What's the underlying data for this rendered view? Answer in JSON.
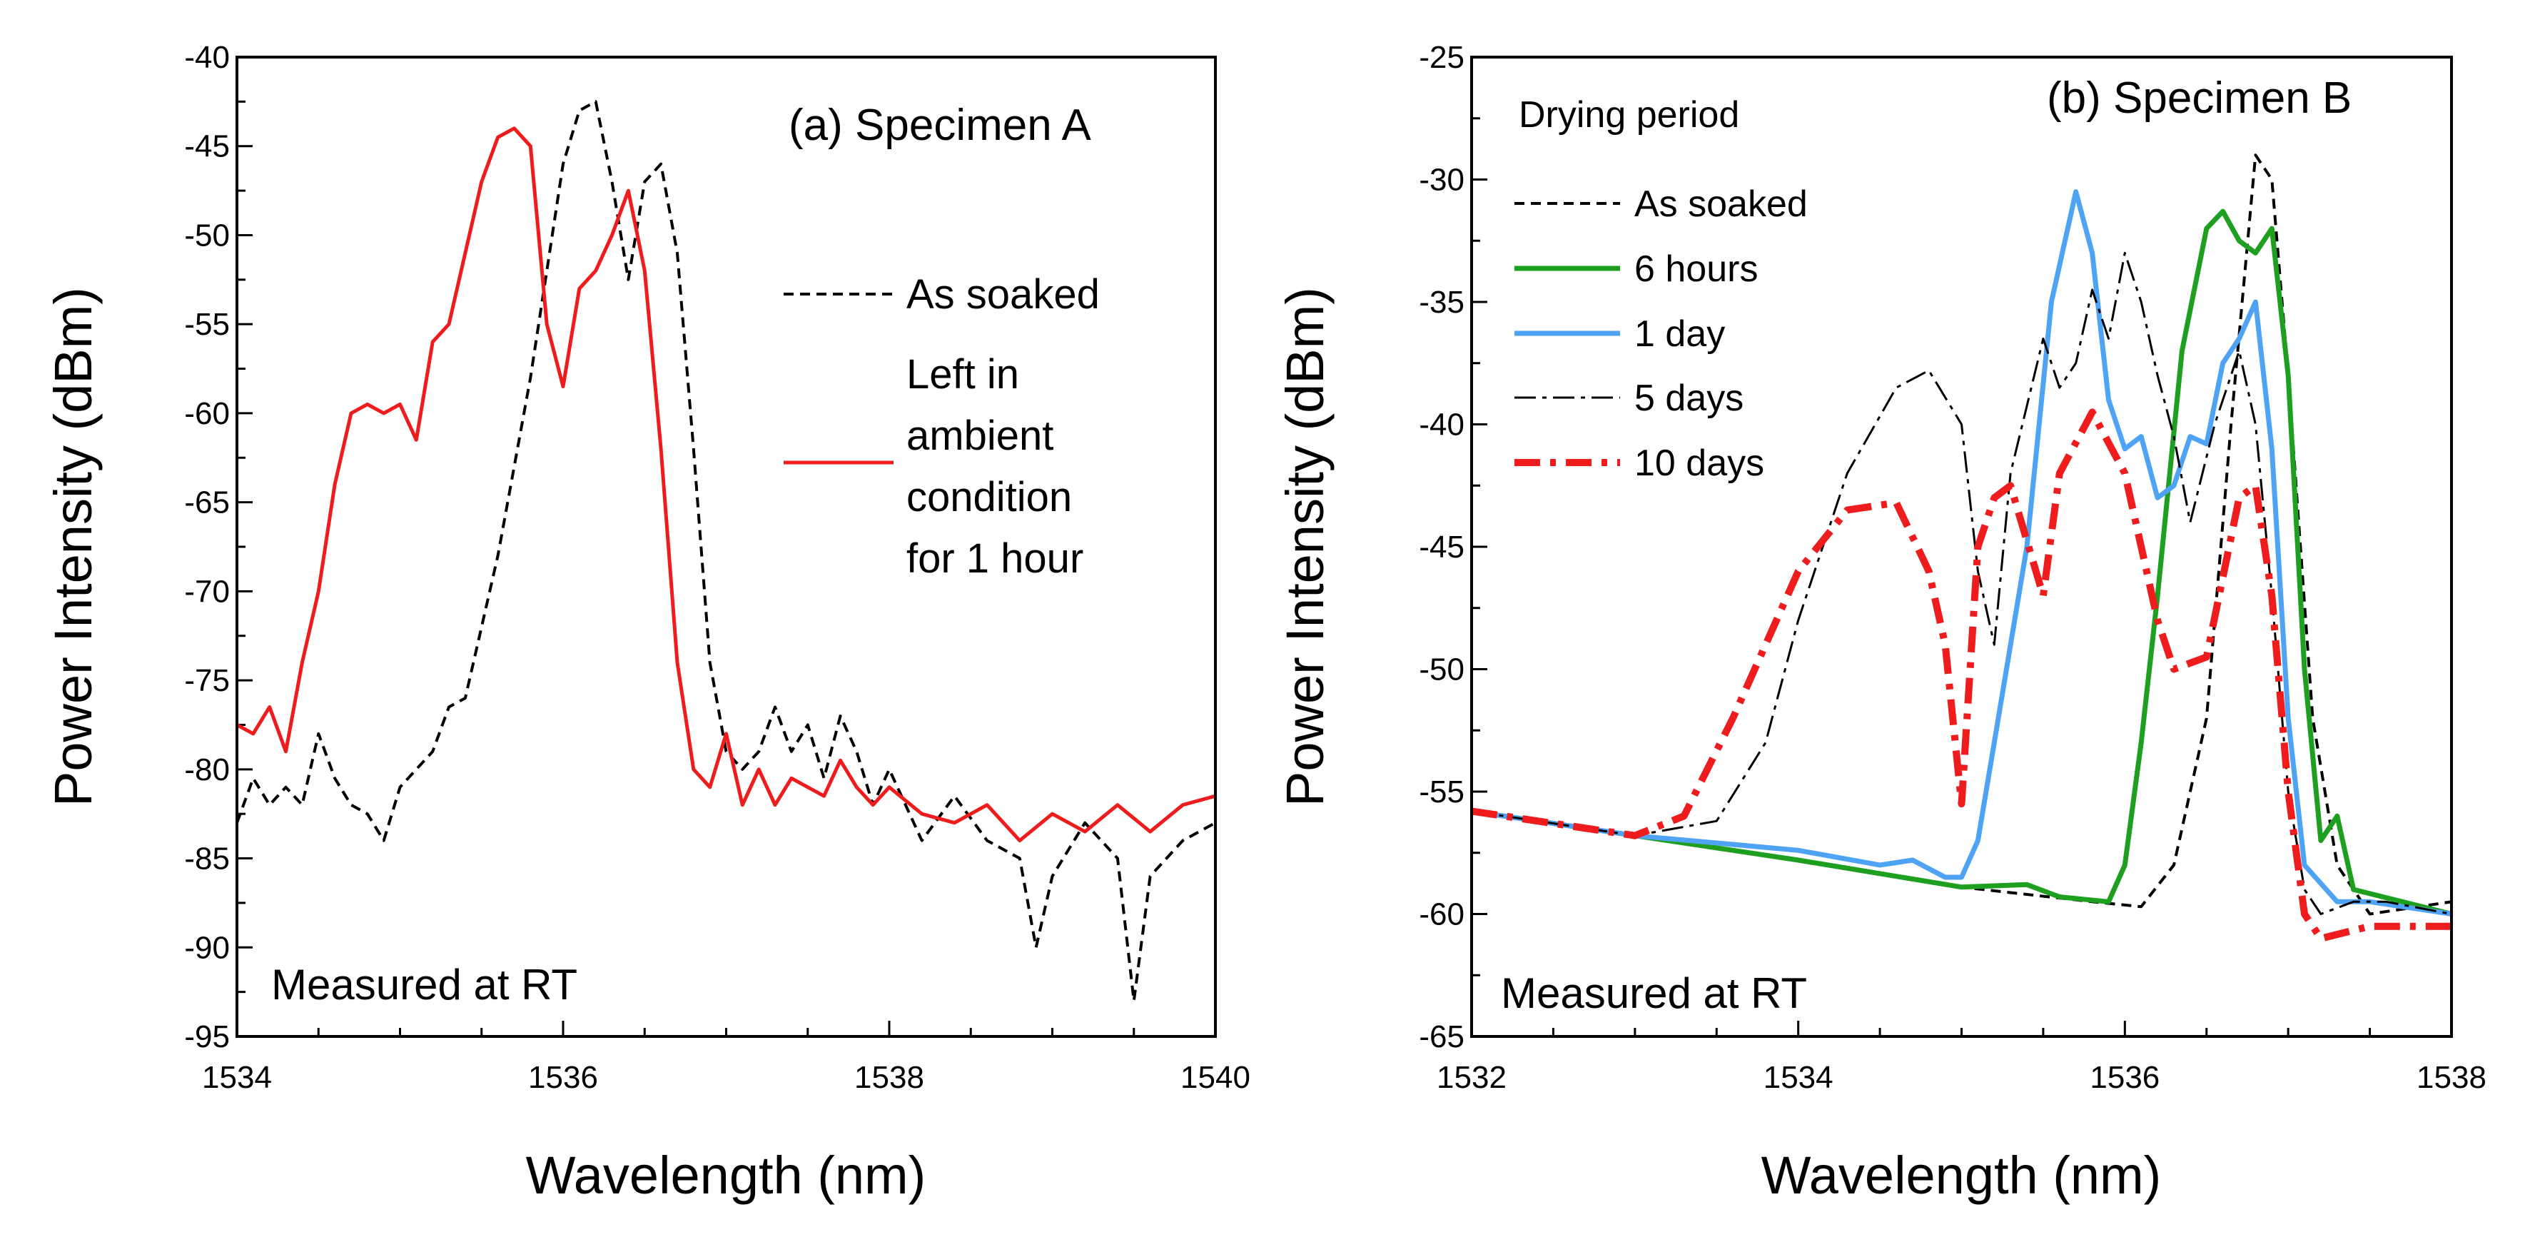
{
  "chart_data": [
    {
      "type": "line",
      "title": "(a) Specimen A",
      "xlabel": "Wavelength (nm)",
      "ylabel": "Power Intensity (dBm)",
      "xlim": [
        1534,
        1540
      ],
      "ylim": [
        -95,
        -40
      ],
      "xticks": [
        1534,
        1536,
        1538,
        1540
      ],
      "yticks": [
        -95,
        -90,
        -85,
        -80,
        -75,
        -70,
        -65,
        -60,
        -55,
        -50,
        -45,
        -40
      ],
      "annotation": "Measured at RT",
      "legend_position": "center-right",
      "series": [
        {
          "name": "As soaked",
          "color": "#000000",
          "style": "dash",
          "x": [
            1534.0,
            1534.1,
            1534.2,
            1534.3,
            1534.4,
            1534.5,
            1534.6,
            1534.7,
            1534.8,
            1534.9,
            1535.0,
            1535.1,
            1535.2,
            1535.3,
            1535.4,
            1535.5,
            1535.6,
            1535.7,
            1535.8,
            1535.9,
            1536.0,
            1536.1,
            1536.2,
            1536.3,
            1536.4,
            1536.5,
            1536.6,
            1536.7,
            1536.8,
            1536.9,
            1537.0,
            1537.1,
            1537.2,
            1537.3,
            1537.4,
            1537.5,
            1537.6,
            1537.7,
            1537.8,
            1537.9,
            1538.0,
            1538.2,
            1538.4,
            1538.6,
            1538.8,
            1538.9,
            1539.0,
            1539.2,
            1539.4,
            1539.5,
            1539.6,
            1539.8,
            1540.0
          ],
          "y": [
            -83,
            -80.5,
            -82,
            -81,
            -82,
            -78,
            -80.5,
            -82,
            -82.5,
            -84,
            -81,
            -80,
            -79,
            -76.5,
            -76,
            -72,
            -68,
            -63,
            -58,
            -52,
            -46,
            -43,
            -42.5,
            -47,
            -52.5,
            -47,
            -46,
            -51,
            -62,
            -74,
            -79,
            -80,
            -79,
            -76.5,
            -79,
            -77.5,
            -80.5,
            -77,
            -79,
            -82,
            -80,
            -84,
            -81.5,
            -84,
            -85,
            -90,
            -86,
            -83,
            -85,
            -93,
            -86,
            -84,
            -83
          ]
        },
        {
          "name": "Left in ambient condition for 1 hour",
          "label_lines": [
            "Left in",
            "ambient",
            "condition",
            "for 1 hour"
          ],
          "color": "#ee1c1c",
          "style": "solid",
          "x": [
            1534.0,
            1534.1,
            1534.2,
            1534.3,
            1534.4,
            1534.5,
            1534.6,
            1534.7,
            1534.8,
            1534.9,
            1535.0,
            1535.1,
            1535.2,
            1535.3,
            1535.4,
            1535.5,
            1535.6,
            1535.7,
            1535.8,
            1535.9,
            1536.0,
            1536.1,
            1536.2,
            1536.3,
            1536.4,
            1536.5,
            1536.6,
            1536.7,
            1536.8,
            1536.9,
            1537.0,
            1537.1,
            1537.2,
            1537.3,
            1537.4,
            1537.5,
            1537.6,
            1537.7,
            1537.8,
            1537.9,
            1538.0,
            1538.2,
            1538.4,
            1538.6,
            1538.8,
            1539.0,
            1539.2,
            1539.4,
            1539.6,
            1539.8,
            1540.0
          ],
          "y": [
            -77.5,
            -78,
            -76.5,
            -79,
            -74,
            -70,
            -64,
            -60,
            -59.5,
            -60,
            -59.5,
            -61.5,
            -56,
            -55,
            -51,
            -47,
            -44.5,
            -44,
            -45,
            -55,
            -58.5,
            -53,
            -52,
            -50,
            -47.5,
            -52,
            -62,
            -74,
            -80,
            -81,
            -78,
            -82,
            -80,
            -82,
            -80.5,
            -81,
            -81.5,
            -79.5,
            -81,
            -82,
            -81,
            -82.5,
            -83,
            -82,
            -84,
            -82.5,
            -83.5,
            -82,
            -83.5,
            -82,
            -81.5
          ]
        }
      ]
    },
    {
      "type": "line",
      "title": "(b) Specimen B",
      "xlabel": "Wavelength (nm)",
      "ylabel": "Power Intensity (dBm)",
      "xlim": [
        1532,
        1538
      ],
      "ylim": [
        -65,
        -25
      ],
      "xticks": [
        1532,
        1534,
        1536,
        1538
      ],
      "yticks": [
        -65,
        -60,
        -55,
        -50,
        -45,
        -40,
        -35,
        -30,
        -25
      ],
      "annotation": "Measured at RT",
      "legend_title": "Drying period",
      "legend_position": "top-left",
      "series": [
        {
          "name": "As soaked",
          "color": "#000000",
          "style": "dash",
          "x": [
            1532,
            1533,
            1534,
            1535,
            1535.8,
            1536.1,
            1536.3,
            1536.5,
            1536.65,
            1536.8,
            1536.9,
            1537.0,
            1537.15,
            1537.3,
            1537.5,
            1538
          ],
          "y": [
            -55.8,
            -56.8,
            -57.8,
            -58.9,
            -59.5,
            -59.7,
            -58,
            -52,
            -40,
            -29,
            -30,
            -38,
            -52,
            -58,
            -60,
            -59.5
          ]
        },
        {
          "name": "6 hours",
          "color": "#1f9f1f",
          "style": "solid",
          "x": [
            1532,
            1533,
            1534,
            1535,
            1535.4,
            1535.6,
            1535.9,
            1536.0,
            1536.1,
            1536.2,
            1536.35,
            1536.5,
            1536.6,
            1536.7,
            1536.8,
            1536.9,
            1537.0,
            1537.1,
            1537.2,
            1537.3,
            1537.4,
            1538
          ],
          "y": [
            -55.8,
            -56.8,
            -57.8,
            -58.9,
            -58.8,
            -59.3,
            -59.5,
            -58,
            -53,
            -47,
            -37,
            -32,
            -31.3,
            -32.5,
            -33,
            -32,
            -38,
            -50,
            -57,
            -56,
            -59,
            -60
          ]
        },
        {
          "name": "1 day",
          "color": "#4fa3f5",
          "style": "solid",
          "x": [
            1532,
            1533,
            1534,
            1534.5,
            1534.7,
            1534.9,
            1535.0,
            1535.1,
            1535.2,
            1535.4,
            1535.55,
            1535.7,
            1535.8,
            1535.9,
            1536.0,
            1536.1,
            1536.2,
            1536.3,
            1536.4,
            1536.5,
            1536.6,
            1536.7,
            1536.8,
            1536.9,
            1537.0,
            1537.1,
            1537.3,
            1537.5,
            1538
          ],
          "y": [
            -55.8,
            -56.8,
            -57.4,
            -58,
            -57.8,
            -58.5,
            -58.5,
            -57,
            -53,
            -45,
            -35,
            -30.5,
            -33,
            -39,
            -41,
            -40.5,
            -43,
            -42.5,
            -40.5,
            -40.8,
            -37.5,
            -36.5,
            -35,
            -41,
            -52,
            -58,
            -59.5,
            -59.5,
            -60
          ]
        },
        {
          "name": "5 days",
          "color": "#000000",
          "style": "dashdot",
          "x": [
            1532,
            1533,
            1533.5,
            1533.8,
            1534.0,
            1534.3,
            1534.6,
            1534.8,
            1535.0,
            1535.1,
            1535.2,
            1535.3,
            1535.5,
            1535.6,
            1535.7,
            1535.8,
            1535.9,
            1536.0,
            1536.1,
            1536.2,
            1536.3,
            1536.4,
            1536.55,
            1536.7,
            1536.8,
            1536.9,
            1537.0,
            1537.1,
            1537.2,
            1537.4,
            1537.6,
            1538
          ],
          "y": [
            -55.8,
            -56.8,
            -56.2,
            -53,
            -48,
            -42,
            -38.5,
            -37.8,
            -40,
            -46,
            -49,
            -42,
            -36.5,
            -38.5,
            -37.5,
            -34.5,
            -36.5,
            -33,
            -35,
            -38,
            -40.5,
            -44,
            -40,
            -37,
            -40,
            -47,
            -55,
            -59,
            -60,
            -59.5,
            -59.5,
            -60
          ]
        },
        {
          "name": "10 days",
          "color": "#ee1c1c",
          "style": "dashdot",
          "x": [
            1532,
            1533,
            1533.3,
            1533.6,
            1534.0,
            1534.3,
            1534.6,
            1534.8,
            1534.9,
            1535.0,
            1535.1,
            1535.2,
            1535.3,
            1535.5,
            1535.6,
            1535.8,
            1536.0,
            1536.2,
            1536.3,
            1536.5,
            1536.7,
            1536.8,
            1536.9,
            1537.0,
            1537.1,
            1537.2,
            1537.5,
            1538
          ],
          "y": [
            -55.8,
            -56.8,
            -56,
            -52,
            -46,
            -43.5,
            -43.2,
            -46,
            -49,
            -55.5,
            -45,
            -43,
            -42.5,
            -47,
            -42,
            -39.5,
            -42,
            -48,
            -50,
            -49.5,
            -43,
            -42.5,
            -47,
            -55,
            -60,
            -61,
            -60.5,
            -60.5
          ]
        }
      ]
    }
  ]
}
